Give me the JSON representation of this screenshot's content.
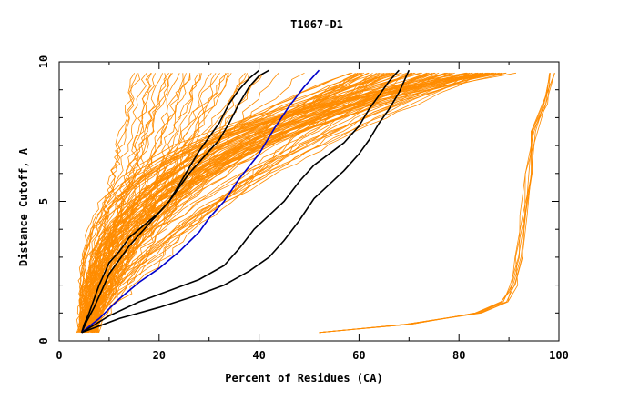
{
  "chart_data": {
    "type": "line",
    "title": "T1067-D1",
    "xlabel": "Percent of Residues (CA)",
    "ylabel": "Distance Cutoff, A",
    "xlim": [
      0,
      100
    ],
    "ylim": [
      0,
      10
    ],
    "xticks": [
      "0",
      "20",
      "40",
      "60",
      "80",
      "100"
    ],
    "yticks": [
      "0",
      "5",
      "10"
    ],
    "grid": false,
    "colors": {
      "background": "#ffffff",
      "axis": "#000000",
      "model_curves": "#ff8c00",
      "highlight_black": "#000000",
      "highlight_blue": "#0000cc"
    },
    "highlighted_series": [
      {
        "color": "#000000",
        "points": [
          [
            4.5,
            0.3
          ],
          [
            5,
            0.6
          ],
          [
            6,
            1.0
          ],
          [
            7,
            1.5
          ],
          [
            8,
            2.0
          ],
          [
            9,
            2.4
          ],
          [
            10,
            2.8
          ],
          [
            12,
            3.2
          ],
          [
            14,
            3.7
          ],
          [
            16,
            4.0
          ],
          [
            18,
            4.3
          ],
          [
            20,
            4.6
          ],
          [
            22,
            5.0
          ],
          [
            24,
            5.6
          ],
          [
            26,
            6.2
          ],
          [
            28,
            6.8
          ],
          [
            30,
            7.3
          ],
          [
            32,
            7.8
          ],
          [
            34,
            8.5
          ],
          [
            36,
            9.0
          ],
          [
            38,
            9.4
          ],
          [
            40,
            9.7
          ]
        ]
      },
      {
        "color": "#000000",
        "points": [
          [
            4.5,
            0.3
          ],
          [
            5.5,
            0.7
          ],
          [
            7,
            1.2
          ],
          [
            8.5,
            1.8
          ],
          [
            10,
            2.4
          ],
          [
            12,
            2.9
          ],
          [
            14,
            3.4
          ],
          [
            16,
            3.8
          ],
          [
            18,
            4.2
          ],
          [
            20,
            4.6
          ],
          [
            22,
            5.0
          ],
          [
            24,
            5.5
          ],
          [
            26,
            6.0
          ],
          [
            28,
            6.4
          ],
          [
            30,
            6.8
          ],
          [
            32,
            7.2
          ],
          [
            34,
            7.8
          ],
          [
            36,
            8.5
          ],
          [
            38,
            9.1
          ],
          [
            40,
            9.5
          ],
          [
            42,
            9.7
          ]
        ]
      },
      {
        "color": "#0000cc",
        "points": [
          [
            4.5,
            0.3
          ],
          [
            8,
            0.8
          ],
          [
            12,
            1.5
          ],
          [
            16,
            2.1
          ],
          [
            20,
            2.6
          ],
          [
            24,
            3.2
          ],
          [
            28,
            3.9
          ],
          [
            30,
            4.4
          ],
          [
            33,
            5.0
          ],
          [
            36,
            5.8
          ],
          [
            40,
            6.7
          ],
          [
            43,
            7.6
          ],
          [
            46,
            8.4
          ],
          [
            49,
            9.1
          ],
          [
            52,
            9.7
          ]
        ]
      },
      {
        "color": "#000000",
        "points": [
          [
            4.5,
            0.3
          ],
          [
            10,
            0.9
          ],
          [
            16,
            1.4
          ],
          [
            22,
            1.8
          ],
          [
            28,
            2.2
          ],
          [
            33,
            2.7
          ],
          [
            36,
            3.3
          ],
          [
            39,
            4.0
          ],
          [
            42,
            4.5
          ],
          [
            45,
            5.0
          ],
          [
            48,
            5.7
          ],
          [
            51,
            6.3
          ],
          [
            54,
            6.7
          ],
          [
            57,
            7.1
          ],
          [
            60,
            7.7
          ],
          [
            62,
            8.3
          ],
          [
            64,
            8.8
          ],
          [
            66,
            9.3
          ],
          [
            68,
            9.7
          ]
        ]
      },
      {
        "color": "#000000",
        "points": [
          [
            4.5,
            0.3
          ],
          [
            12,
            0.8
          ],
          [
            20,
            1.2
          ],
          [
            27,
            1.6
          ],
          [
            33,
            2.0
          ],
          [
            38,
            2.5
          ],
          [
            42,
            3.0
          ],
          [
            45,
            3.6
          ],
          [
            48,
            4.3
          ],
          [
            51,
            5.1
          ],
          [
            54,
            5.6
          ],
          [
            57,
            6.1
          ],
          [
            60,
            6.7
          ],
          [
            62,
            7.2
          ],
          [
            64,
            7.8
          ],
          [
            66,
            8.3
          ],
          [
            68,
            8.9
          ],
          [
            70,
            9.7
          ]
        ]
      }
    ]
  }
}
